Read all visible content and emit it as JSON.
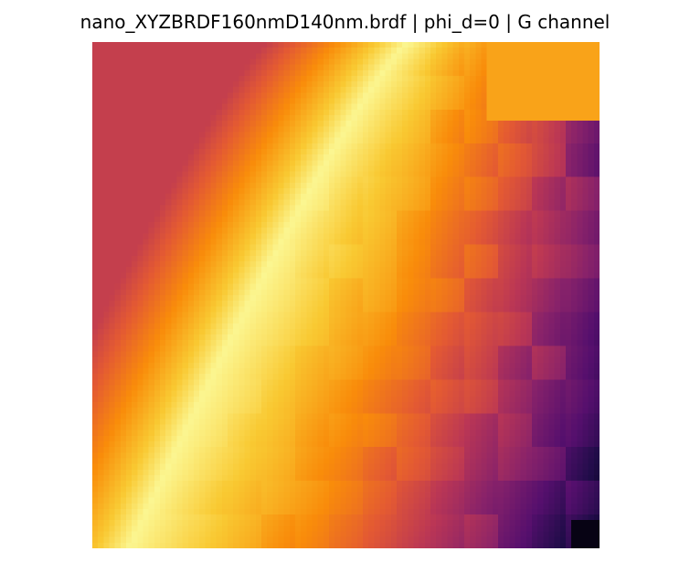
{
  "chart_data": {
    "type": "heatmap",
    "title": "nano_XYZBRDF160nmD140nm.brdf | phi_d=0 | G channel",
    "colormap": "inferno",
    "axes_visible": false,
    "grid": false,
    "value_range": [
      0,
      1
    ],
    "description_bands": {
      "ridge_peak": 0.98,
      "upper_left_corner": 0.55,
      "right_mid": 0.55,
      "bottom_right_corner": 0.05
    }
  }
}
